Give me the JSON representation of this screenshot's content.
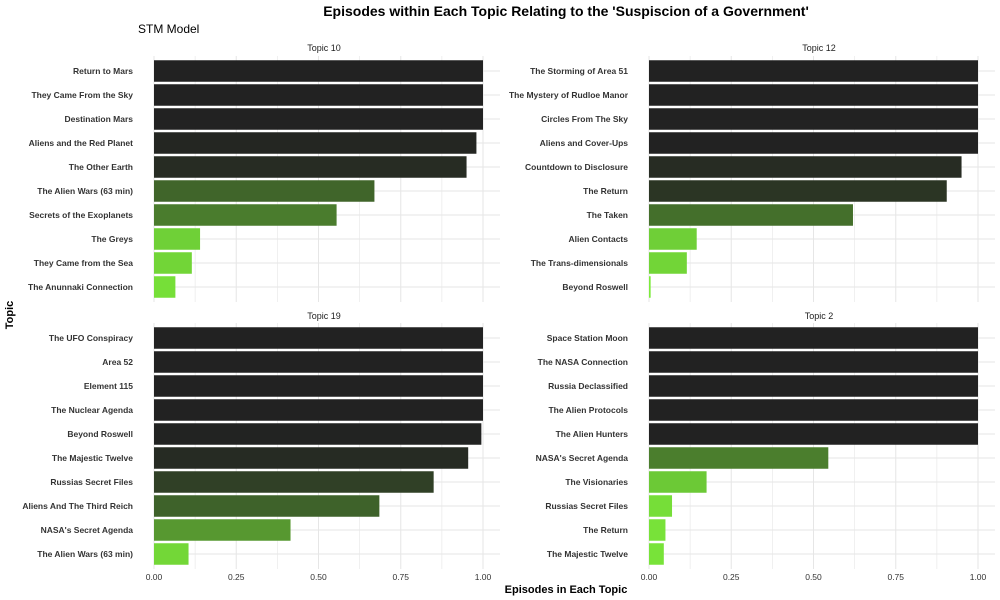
{
  "chart_data": {
    "type": "bar",
    "orientation": "horizontal",
    "title": "Episodes within Each Topic Relating to the 'Suspiscion of a Government'",
    "subtitle": "STM Model",
    "xlabel": "Episodes in Each Topic",
    "ylabel": "Topic",
    "xlim": [
      0,
      1
    ],
    "x_ticks": [
      "0.00",
      "0.25",
      "0.50",
      "0.75",
      "1.00"
    ],
    "grid": true,
    "legend": "none",
    "color_scale": {
      "low": "#7cec3a",
      "high": "#222222"
    },
    "panels": [
      {
        "name": "Topic 10",
        "categories": [
          "Return to Mars",
          "They Came From the Sky",
          "Destination Mars",
          "Aliens and the Red Planet",
          "The Other Earth",
          "The Alien Wars (63 min)",
          "Secrets of the Exoplanets",
          "The Greys",
          "They Came from the Sea",
          "The Anunnaki Connection"
        ],
        "values": [
          1.0,
          1.0,
          1.0,
          0.98,
          0.95,
          0.67,
          0.555,
          0.14,
          0.115,
          0.065
        ]
      },
      {
        "name": "Topic 12",
        "categories": [
          "The Storming of Area 51",
          "The Mystery of Rudloe Manor",
          "Circles From The Sky",
          "Aliens and Cover-Ups",
          "Countdown to Disclosure",
          "The Return",
          "The Taken",
          "Alien Contacts",
          "The Trans-dimensionals",
          "Beyond Roswell"
        ],
        "values": [
          1.0,
          1.0,
          1.0,
          1.0,
          0.95,
          0.905,
          0.62,
          0.145,
          0.115,
          0.005
        ]
      },
      {
        "name": "Topic 19",
        "categories": [
          "The UFO Conspiracy",
          "Area 52",
          "Element 115",
          "The Nuclear Agenda",
          "Beyond Roswell",
          "The Majestic Twelve",
          "Russias Secret Files",
          "Aliens And The Third Reich",
          "NASA's Secret Agenda",
          "The Alien Wars (63 min)"
        ],
        "values": [
          1.0,
          1.0,
          1.0,
          1.0,
          0.995,
          0.955,
          0.85,
          0.685,
          0.415,
          0.105
        ]
      },
      {
        "name": "Topic 2",
        "categories": [
          "Space Station Moon",
          "The NASA Connection",
          "Russia Declassified",
          "The Alien Protocols",
          "The Alien Hunters",
          "NASA's Secret Agenda",
          "The Visionaries",
          "Russias Secret Files",
          "The Return",
          "The Majestic Twelve"
        ],
        "values": [
          1.0,
          1.0,
          1.0,
          1.0,
          1.0,
          0.545,
          0.175,
          0.07,
          0.05,
          0.045
        ]
      }
    ]
  }
}
